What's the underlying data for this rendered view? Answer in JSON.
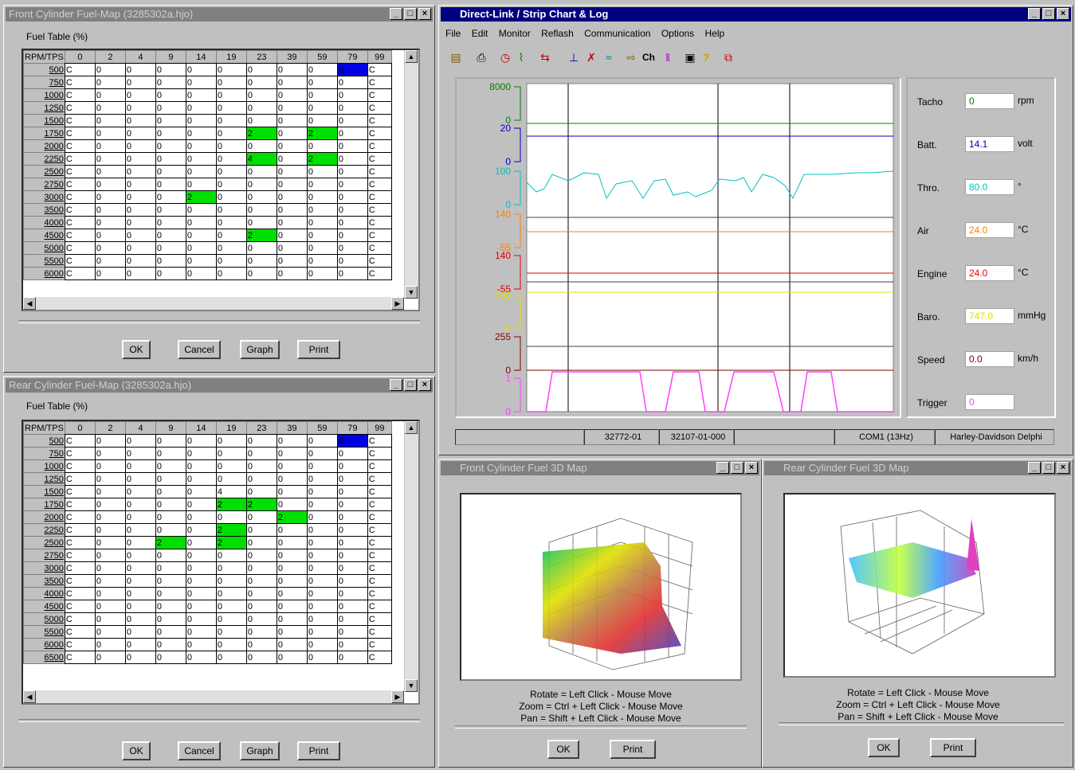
{
  "front_map": {
    "title": "Front Cylinder Fuel-Map (3285302a.hjo)",
    "subtitle": "Fuel Table (%)",
    "corner": "RPM/TPS",
    "cols": [
      "0",
      "2",
      "4",
      "9",
      "14",
      "19",
      "23",
      "39",
      "59",
      "79",
      "99"
    ],
    "rows": [
      {
        "rpm": "500",
        "cells": [
          "C",
          "0",
          "0",
          "0",
          "0",
          "0",
          "0",
          "0",
          "0",
          "0",
          "C"
        ],
        "hl": {
          "9": "bl"
        }
      },
      {
        "rpm": "750",
        "cells": [
          "C",
          "0",
          "0",
          "0",
          "0",
          "0",
          "0",
          "0",
          "0",
          "0",
          "C"
        ],
        "hl": {}
      },
      {
        "rpm": "1000",
        "cells": [
          "C",
          "0",
          "0",
          "0",
          "0",
          "0",
          "0",
          "0",
          "0",
          "0",
          "C"
        ],
        "hl": {}
      },
      {
        "rpm": "1250",
        "cells": [
          "C",
          "0",
          "0",
          "0",
          "0",
          "0",
          "0",
          "0",
          "0",
          "0",
          "C"
        ],
        "hl": {}
      },
      {
        "rpm": "1500",
        "cells": [
          "C",
          "0",
          "0",
          "0",
          "0",
          "0",
          "0",
          "0",
          "0",
          "0",
          "C"
        ],
        "hl": {}
      },
      {
        "rpm": "1750",
        "cells": [
          "C",
          "0",
          "0",
          "0",
          "0",
          "0",
          "2",
          "0",
          "2",
          "0",
          "C"
        ],
        "hl": {
          "6": "gr",
          "8": "gr"
        }
      },
      {
        "rpm": "2000",
        "cells": [
          "C",
          "0",
          "0",
          "0",
          "0",
          "0",
          "0",
          "0",
          "0",
          "0",
          "C"
        ],
        "hl": {}
      },
      {
        "rpm": "2250",
        "cells": [
          "C",
          "0",
          "0",
          "0",
          "0",
          "0",
          "4",
          "0",
          "2",
          "0",
          "C"
        ],
        "hl": {
          "6": "gr",
          "8": "gr"
        }
      },
      {
        "rpm": "2500",
        "cells": [
          "C",
          "0",
          "0",
          "0",
          "0",
          "0",
          "0",
          "0",
          "0",
          "0",
          "C"
        ],
        "hl": {}
      },
      {
        "rpm": "2750",
        "cells": [
          "C",
          "0",
          "0",
          "0",
          "0",
          "0",
          "0",
          "0",
          "0",
          "0",
          "C"
        ],
        "hl": {}
      },
      {
        "rpm": "3000",
        "cells": [
          "C",
          "0",
          "0",
          "0",
          "2",
          "0",
          "0",
          "0",
          "0",
          "0",
          "C"
        ],
        "hl": {
          "4": "gr"
        }
      },
      {
        "rpm": "3500",
        "cells": [
          "C",
          "0",
          "0",
          "0",
          "0",
          "0",
          "0",
          "0",
          "0",
          "0",
          "C"
        ],
        "hl": {}
      },
      {
        "rpm": "4000",
        "cells": [
          "C",
          "0",
          "0",
          "0",
          "0",
          "0",
          "0",
          "0",
          "0",
          "0",
          "C"
        ],
        "hl": {}
      },
      {
        "rpm": "4500",
        "cells": [
          "C",
          "0",
          "0",
          "0",
          "0",
          "0",
          "2",
          "0",
          "0",
          "0",
          "C"
        ],
        "hl": {
          "6": "gr"
        }
      },
      {
        "rpm": "5000",
        "cells": [
          "C",
          "0",
          "0",
          "0",
          "0",
          "0",
          "0",
          "0",
          "0",
          "0",
          "C"
        ],
        "hl": {}
      },
      {
        "rpm": "5500",
        "cells": [
          "C",
          "0",
          "0",
          "0",
          "0",
          "0",
          "0",
          "0",
          "0",
          "0",
          "C"
        ],
        "hl": {}
      },
      {
        "rpm": "6000",
        "cells": [
          "C",
          "0",
          "0",
          "0",
          "0",
          "0",
          "0",
          "0",
          "0",
          "0",
          "C"
        ],
        "hl": {}
      }
    ],
    "buttons": {
      "ok": "OK",
      "cancel": "Cancel",
      "graph": "Graph",
      "print": "Print"
    }
  },
  "rear_map": {
    "title": "Rear Cylinder Fuel-Map (3285302a.hjo)",
    "subtitle": "Fuel Table (%)",
    "corner": "RPM/TPS",
    "cols": [
      "0",
      "2",
      "4",
      "9",
      "14",
      "19",
      "23",
      "39",
      "59",
      "79",
      "99"
    ],
    "rows": [
      {
        "rpm": "500",
        "cells": [
          "C",
          "0",
          "0",
          "0",
          "0",
          "0",
          "0",
          "0",
          "0",
          "0",
          "C"
        ],
        "hl": {
          "9": "bl"
        }
      },
      {
        "rpm": "750",
        "cells": [
          "C",
          "0",
          "0",
          "0",
          "0",
          "0",
          "0",
          "0",
          "0",
          "0",
          "C"
        ],
        "hl": {}
      },
      {
        "rpm": "1000",
        "cells": [
          "C",
          "0",
          "0",
          "0",
          "0",
          "0",
          "0",
          "0",
          "0",
          "0",
          "C"
        ],
        "hl": {}
      },
      {
        "rpm": "1250",
        "cells": [
          "C",
          "0",
          "0",
          "0",
          "0",
          "0",
          "0",
          "0",
          "0",
          "0",
          "C"
        ],
        "hl": {}
      },
      {
        "rpm": "1500",
        "cells": [
          "C",
          "0",
          "0",
          "0",
          "0",
          "4",
          "0",
          "0",
          "0",
          "0",
          "C"
        ],
        "hl": {}
      },
      {
        "rpm": "1750",
        "cells": [
          "C",
          "0",
          "0",
          "0",
          "0",
          "2",
          "2",
          "0",
          "0",
          "0",
          "C"
        ],
        "hl": {
          "5": "gr",
          "6": "gr"
        }
      },
      {
        "rpm": "2000",
        "cells": [
          "C",
          "0",
          "0",
          "0",
          "0",
          "0",
          "0",
          "2",
          "0",
          "0",
          "C"
        ],
        "hl": {
          "7": "gr"
        }
      },
      {
        "rpm": "2250",
        "cells": [
          "C",
          "0",
          "0",
          "0",
          "0",
          "2",
          "0",
          "0",
          "0",
          "0",
          "C"
        ],
        "hl": {
          "5": "gr"
        }
      },
      {
        "rpm": "2500",
        "cells": [
          "C",
          "0",
          "0",
          "2",
          "0",
          "2",
          "0",
          "0",
          "0",
          "0",
          "C"
        ],
        "hl": {
          "3": "gr",
          "5": "gr"
        }
      },
      {
        "rpm": "2750",
        "cells": [
          "C",
          "0",
          "0",
          "0",
          "0",
          "0",
          "0",
          "0",
          "0",
          "0",
          "C"
        ],
        "hl": {}
      },
      {
        "rpm": "3000",
        "cells": [
          "C",
          "0",
          "0",
          "0",
          "0",
          "0",
          "0",
          "0",
          "0",
          "0",
          "C"
        ],
        "hl": {}
      },
      {
        "rpm": "3500",
        "cells": [
          "C",
          "0",
          "0",
          "0",
          "0",
          "0",
          "0",
          "0",
          "0",
          "0",
          "C"
        ],
        "hl": {}
      },
      {
        "rpm": "4000",
        "cells": [
          "C",
          "0",
          "0",
          "0",
          "0",
          "0",
          "0",
          "0",
          "0",
          "0",
          "C"
        ],
        "hl": {}
      },
      {
        "rpm": "4500",
        "cells": [
          "C",
          "0",
          "0",
          "0",
          "0",
          "0",
          "0",
          "0",
          "0",
          "0",
          "C"
        ],
        "hl": {}
      },
      {
        "rpm": "5000",
        "cells": [
          "C",
          "0",
          "0",
          "0",
          "0",
          "0",
          "0",
          "0",
          "0",
          "0",
          "C"
        ],
        "hl": {}
      },
      {
        "rpm": "5500",
        "cells": [
          "C",
          "0",
          "0",
          "0",
          "0",
          "0",
          "0",
          "0",
          "0",
          "0",
          "C"
        ],
        "hl": {}
      },
      {
        "rpm": "6000",
        "cells": [
          "C",
          "0",
          "0",
          "0",
          "0",
          "0",
          "0",
          "0",
          "0",
          "0",
          "C"
        ],
        "hl": {}
      },
      {
        "rpm": "6500",
        "cells": [
          "C",
          "0",
          "0",
          "0",
          "0",
          "0",
          "0",
          "0",
          "0",
          "0",
          "C"
        ],
        "hl": {}
      }
    ],
    "buttons": {
      "ok": "OK",
      "cancel": "Cancel",
      "graph": "Graph",
      "print": "Print"
    }
  },
  "strip": {
    "title": "Direct-Link / Strip Chart & Log",
    "menu": [
      "File",
      "Edit",
      "Monitor",
      "Reflash",
      "Communication",
      "Options",
      "Help"
    ],
    "axis_labels": [
      {
        "text": "8000",
        "color": "#008000"
      },
      {
        "text": "0",
        "color": "#008000"
      },
      {
        "text": "20",
        "color": "#0000c0"
      },
      {
        "text": "0",
        "color": "#0000c0"
      },
      {
        "text": "100",
        "color": "#00c0c0"
      },
      {
        "text": "0",
        "color": "#00c0c0"
      },
      {
        "text": "140",
        "color": "#ff8000"
      },
      {
        "text": "-55",
        "color": "#ff8000"
      },
      {
        "text": "140",
        "color": "#e00000"
      },
      {
        "text": "-55",
        "color": "#e00000"
      },
      {
        "text": "700",
        "color": "#e0e000"
      },
      {
        "text": "0",
        "color": "#e0e000"
      },
      {
        "text": "255",
        "color": "#800000"
      },
      {
        "text": "0",
        "color": "#800000"
      },
      {
        "text": "1",
        "color": "#ff40ff"
      },
      {
        "text": "0",
        "color": "#ff40ff"
      }
    ],
    "gauges": [
      {
        "name": "Tacho",
        "value": "0",
        "unit": "rpm",
        "color": "#008000"
      },
      {
        "name": "Batt.",
        "value": "14.1",
        "unit": "volt",
        "color": "#0000c0"
      },
      {
        "name": "Thro.",
        "value": "80.0",
        "unit": "°",
        "color": "#00c0c0"
      },
      {
        "name": "Air",
        "value": "24.0",
        "unit": "°C",
        "color": "#ff8000"
      },
      {
        "name": "Engine",
        "value": "24.0",
        "unit": "°C",
        "color": "#e00000"
      },
      {
        "name": "Baro.",
        "value": "747.0",
        "unit": "mmHg",
        "color": "#e0e000"
      },
      {
        "name": "Speed",
        "value": "0.0",
        "unit": "km/h",
        "color": "#800000"
      },
      {
        "name": "Trigger",
        "value": "0",
        "unit": "",
        "color": "#ff40ff"
      }
    ],
    "status": [
      "",
      "32772-01",
      "32107-01-000",
      "",
      "COM1 (13Hz)",
      "Harley-Davidson Delphi"
    ]
  },
  "front3d": {
    "title": "Front Cylinder Fuel 3D Map",
    "help": [
      "Rotate = Left Click - Mouse Move",
      "Zoom = Ctrl + Left Click - Mouse Move",
      "Pan = Shift + Left Click - Mouse Move"
    ],
    "ok": "OK",
    "print": "Print"
  },
  "rear3d": {
    "title": "Rear Cylinder Fuel 3D Map",
    "help": [
      "Rotate = Left Click - Mouse Move",
      "Zoom = Ctrl + Left Click - Mouse Move",
      "Pan = Shift + Left Click - Mouse Move"
    ],
    "ok": "OK",
    "print": "Print"
  }
}
